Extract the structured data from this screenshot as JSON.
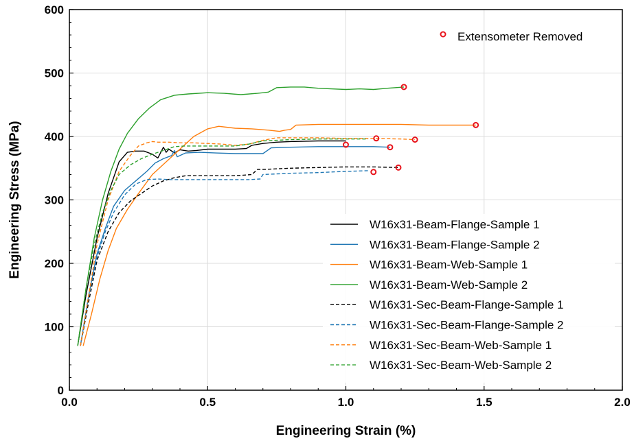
{
  "chart_data": {
    "type": "line",
    "title": "",
    "xlabel": "Engineering Strain (%)",
    "ylabel": "Engineering Stress (MPa)",
    "xlim": [
      0,
      2.0
    ],
    "ylim": [
      0,
      600
    ],
    "x_ticks": [
      0.0,
      0.5,
      1.0,
      1.5,
      2.0
    ],
    "x_tick_labels": [
      "0.0",
      "0.5",
      "1.0",
      "1.5",
      "2.0"
    ],
    "y_ticks": [
      0,
      100,
      200,
      300,
      400,
      500,
      600
    ],
    "y_tick_labels": [
      "0",
      "100",
      "200",
      "300",
      "400",
      "500",
      "600"
    ],
    "grid": true,
    "legend_position": "lower-right",
    "annotation": {
      "label": "Extensometer Removed",
      "marker": "open-circle",
      "color": "#e8141c"
    },
    "series": [
      {
        "name": "W16x31-Beam-Flange-Sample 1",
        "color": "#000000",
        "dash": "solid",
        "x": [
          0.03,
          0.06,
          0.1,
          0.14,
          0.18,
          0.21,
          0.24,
          0.27,
          0.3,
          0.32,
          0.34,
          0.35,
          0.36,
          0.38,
          0.4,
          0.43,
          0.46,
          0.5,
          0.55,
          0.6,
          0.64,
          0.66,
          0.7,
          0.75,
          0.8,
          0.9,
          1.0
        ],
        "y": [
          70,
          150,
          240,
          310,
          360,
          375,
          377,
          377,
          372,
          366,
          383,
          375,
          380,
          374,
          379,
          377,
          378,
          380,
          380,
          380,
          381,
          386,
          389,
          391,
          392,
          393,
          393
        ]
      },
      {
        "name": "W16x31-Beam-Flange-Sample 2",
        "color": "#1f77b4",
        "dash": "solid",
        "x": [
          0.04,
          0.07,
          0.1,
          0.13,
          0.16,
          0.2,
          0.24,
          0.28,
          0.31,
          0.34,
          0.37,
          0.38,
          0.39,
          0.42,
          0.47,
          0.53,
          0.6,
          0.65,
          0.7,
          0.73,
          0.8,
          0.9,
          1.0,
          1.1,
          1.16
        ],
        "y": [
          70,
          150,
          215,
          255,
          290,
          315,
          330,
          345,
          358,
          365,
          370,
          378,
          368,
          374,
          375,
          374,
          373,
          373,
          373,
          382,
          383,
          384,
          384,
          384,
          383
        ]
      },
      {
        "name": "W16x31-Beam-Web-Sample 1",
        "color": "#ff7f0e",
        "dash": "solid",
        "x": [
          0.05,
          0.08,
          0.11,
          0.14,
          0.17,
          0.21,
          0.25,
          0.3,
          0.35,
          0.4,
          0.45,
          0.5,
          0.54,
          0.6,
          0.66,
          0.72,
          0.76,
          0.78,
          0.8,
          0.82,
          0.9,
          1.0,
          1.1,
          1.2,
          1.3,
          1.4,
          1.47
        ],
        "y": [
          70,
          120,
          175,
          220,
          255,
          285,
          310,
          340,
          360,
          380,
          400,
          412,
          416,
          413,
          412,
          410,
          408,
          410,
          411,
          418,
          419,
          419,
          419,
          419,
          418,
          418,
          418
        ]
      },
      {
        "name": "W16x31-Beam-Web-Sample 2",
        "color": "#2ca02c",
        "dash": "solid",
        "x": [
          0.03,
          0.06,
          0.09,
          0.12,
          0.15,
          0.18,
          0.21,
          0.25,
          0.29,
          0.33,
          0.38,
          0.43,
          0.5,
          0.56,
          0.62,
          0.68,
          0.72,
          0.75,
          0.8,
          0.85,
          0.9,
          1.0,
          1.05,
          1.1,
          1.15,
          1.21
        ],
        "y": [
          70,
          160,
          240,
          300,
          345,
          380,
          405,
          428,
          445,
          458,
          465,
          467,
          469,
          468,
          466,
          468,
          470,
          477,
          478,
          478,
          476,
          474,
          475,
          474,
          476,
          478
        ]
      },
      {
        "name": "W16x31-Sec-Beam-Flange-Sample 1",
        "color": "#000000",
        "dash": "dashed",
        "x": [
          0.04,
          0.07,
          0.1,
          0.14,
          0.18,
          0.22,
          0.26,
          0.3,
          0.34,
          0.38,
          0.42,
          0.48,
          0.55,
          0.6,
          0.66,
          0.68,
          0.7,
          0.75,
          0.8,
          0.9,
          1.0,
          1.1,
          1.19
        ],
        "y": [
          70,
          140,
          205,
          250,
          280,
          298,
          310,
          322,
          330,
          335,
          338,
          338,
          338,
          338,
          340,
          348,
          348,
          349,
          350,
          351,
          352,
          352,
          351
        ]
      },
      {
        "name": "W16x31-Sec-Beam-Flange-Sample 2",
        "color": "#1f77b4",
        "dash": "dashed",
        "x": [
          0.04,
          0.07,
          0.1,
          0.13,
          0.16,
          0.2,
          0.24,
          0.28,
          0.32,
          0.36,
          0.4,
          0.45,
          0.5,
          0.55,
          0.6,
          0.65,
          0.69,
          0.7,
          0.75,
          0.8,
          0.9,
          1.0,
          1.08
        ],
        "y": [
          70,
          150,
          210,
          250,
          280,
          308,
          325,
          332,
          333,
          332,
          332,
          332,
          332,
          332,
          332,
          332,
          333,
          340,
          341,
          342,
          343,
          345,
          346
        ]
      },
      {
        "name": "W16x31-Sec-Beam-Web-Sample 1",
        "color": "#ff7f0e",
        "dash": "dashed",
        "x": [
          0.04,
          0.07,
          0.1,
          0.14,
          0.18,
          0.22,
          0.25,
          0.28,
          0.3,
          0.32,
          0.36,
          0.4,
          0.45,
          0.5,
          0.55,
          0.6,
          0.65,
          0.7,
          0.75,
          0.8,
          0.9,
          1.0,
          1.1,
          1.2,
          1.25
        ],
        "y": [
          70,
          150,
          230,
          300,
          345,
          370,
          385,
          390,
          392,
          391,
          391,
          390,
          390,
          389,
          388,
          386,
          388,
          394,
          398,
          398,
          398,
          397,
          397,
          396,
          395
        ]
      },
      {
        "name": "W16x31-Sec-Beam-Web-Sample 2",
        "color": "#2ca02c",
        "dash": "dashed",
        "x": [
          0.03,
          0.06,
          0.09,
          0.12,
          0.15,
          0.18,
          0.22,
          0.26,
          0.3,
          0.34,
          0.38,
          0.42,
          0.46,
          0.5,
          0.55,
          0.6,
          0.65,
          0.7,
          0.75,
          0.8,
          0.9,
          1.0,
          1.08
        ],
        "y": [
          70,
          160,
          230,
          280,
          315,
          340,
          355,
          365,
          372,
          378,
          384,
          385,
          385,
          385,
          385,
          385,
          388,
          393,
          394,
          395,
          396,
          396,
          396
        ]
      }
    ],
    "extensometer_removed_points": {
      "x": [
        1.21,
        1.47,
        1.25,
        1.11,
        1.0,
        1.16,
        1.19,
        1.1
      ],
      "y": [
        478,
        418,
        395,
        397,
        387,
        383,
        351,
        344
      ]
    }
  }
}
